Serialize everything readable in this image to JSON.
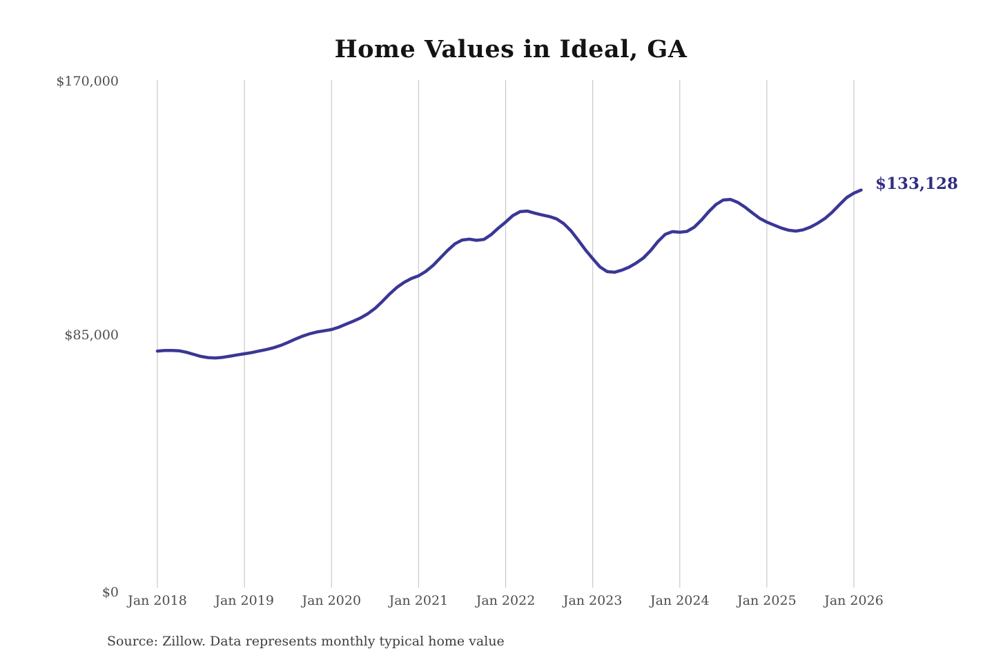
{
  "title": "Home Values in Ideal, GA",
  "source_note": "Source: Zillow. Data represents monthly typical home value",
  "end_label": "$133,128",
  "colors": {
    "background": "#ffffff",
    "line": "#3a3795",
    "end_label": "#312e81",
    "title": "#141414",
    "axis_text": "#4d4d4d",
    "gridline": "#cccccc"
  },
  "y_axis": {
    "ticks": [
      "$170,000",
      "$85,000",
      "$0"
    ],
    "min": 0,
    "max": 170000
  },
  "x_axis": {
    "ticks": [
      "Jan 2018",
      "Jan 2019",
      "Jan 2020",
      "Jan 2021",
      "Jan 2022",
      "Jan 2023",
      "Jan 2024",
      "Jan 2025",
      "Jan 2026"
    ]
  },
  "chart_data": {
    "type": "line",
    "title": "Home Values in Ideal, GA",
    "xlabel": "",
    "ylabel": "",
    "ylim": [
      0,
      170000
    ],
    "yticks": [
      170000,
      85000,
      0
    ],
    "ytick_labels": [
      "$170,000",
      "$85,000",
      "$0"
    ],
    "xtick_labels": [
      "Jan 2018",
      "Jan 2019",
      "Jan 2020",
      "Jan 2021",
      "Jan 2022",
      "Jan 2023",
      "Jan 2024",
      "Jan 2025",
      "Jan 2026"
    ],
    "grid": "vertical-only",
    "legend": "none",
    "final_value": 133128,
    "final_value_label": "$133,128",
    "series_name": "Monthly typical home value (USD)",
    "x": [
      "2018-01",
      "2018-02",
      "2018-03",
      "2018-04",
      "2018-05",
      "2018-06",
      "2018-07",
      "2018-08",
      "2018-09",
      "2018-10",
      "2018-11",
      "2018-12",
      "2019-01",
      "2019-02",
      "2019-03",
      "2019-04",
      "2019-05",
      "2019-06",
      "2019-07",
      "2019-08",
      "2019-09",
      "2019-10",
      "2019-11",
      "2019-12",
      "2020-01",
      "2020-02",
      "2020-03",
      "2020-04",
      "2020-05",
      "2020-06",
      "2020-07",
      "2020-08",
      "2020-09",
      "2020-10",
      "2020-11",
      "2020-12",
      "2021-01",
      "2021-02",
      "2021-03",
      "2021-04",
      "2021-05",
      "2021-06",
      "2021-07",
      "2021-08",
      "2021-09",
      "2021-10",
      "2021-11",
      "2021-12",
      "2022-01",
      "2022-02",
      "2022-03",
      "2022-04",
      "2022-05",
      "2022-06",
      "2022-07",
      "2022-08",
      "2022-09",
      "2022-10",
      "2022-11",
      "2022-12",
      "2023-01",
      "2023-02",
      "2023-03",
      "2023-04",
      "2023-05",
      "2023-06",
      "2023-07",
      "2023-08",
      "2023-09",
      "2023-10",
      "2023-11",
      "2023-12",
      "2024-01",
      "2024-02",
      "2024-03",
      "2024-04",
      "2024-05",
      "2024-06",
      "2024-07",
      "2024-08",
      "2024-09",
      "2024-10",
      "2024-11",
      "2024-12",
      "2025-01",
      "2025-02",
      "2025-03",
      "2025-04",
      "2025-05",
      "2025-06",
      "2025-07",
      "2025-08",
      "2025-09",
      "2025-10",
      "2025-11",
      "2025-12",
      "2026-01",
      "2026-02"
    ],
    "values": [
      79200,
      79400,
      79400,
      79300,
      78800,
      78100,
      77400,
      77000,
      76900,
      77100,
      77500,
      77900,
      78300,
      78700,
      79200,
      79700,
      80300,
      81100,
      82100,
      83200,
      84200,
      85000,
      85600,
      86000,
      86400,
      87200,
      88200,
      89200,
      90300,
      91700,
      93500,
      95800,
      98300,
      100500,
      102200,
      103500,
      104400,
      105900,
      107900,
      110400,
      112900,
      115100,
      116400,
      116700,
      116300,
      116600,
      118200,
      120400,
      122400,
      124600,
      125900,
      126100,
      125400,
      124800,
      124300,
      123500,
      121900,
      119500,
      116400,
      113100,
      110200,
      107400,
      105800,
      105600,
      106300,
      107300,
      108700,
      110400,
      112900,
      115900,
      118300,
      119200,
      119000,
      119300,
      120700,
      123100,
      125900,
      128300,
      129800,
      130000,
      129000,
      127400,
      125500,
      123700,
      122400,
      121400,
      120400,
      119700,
      119400,
      119800,
      120700,
      122000,
      123600,
      125700,
      128200,
      130600,
      132100,
      133128
    ]
  }
}
